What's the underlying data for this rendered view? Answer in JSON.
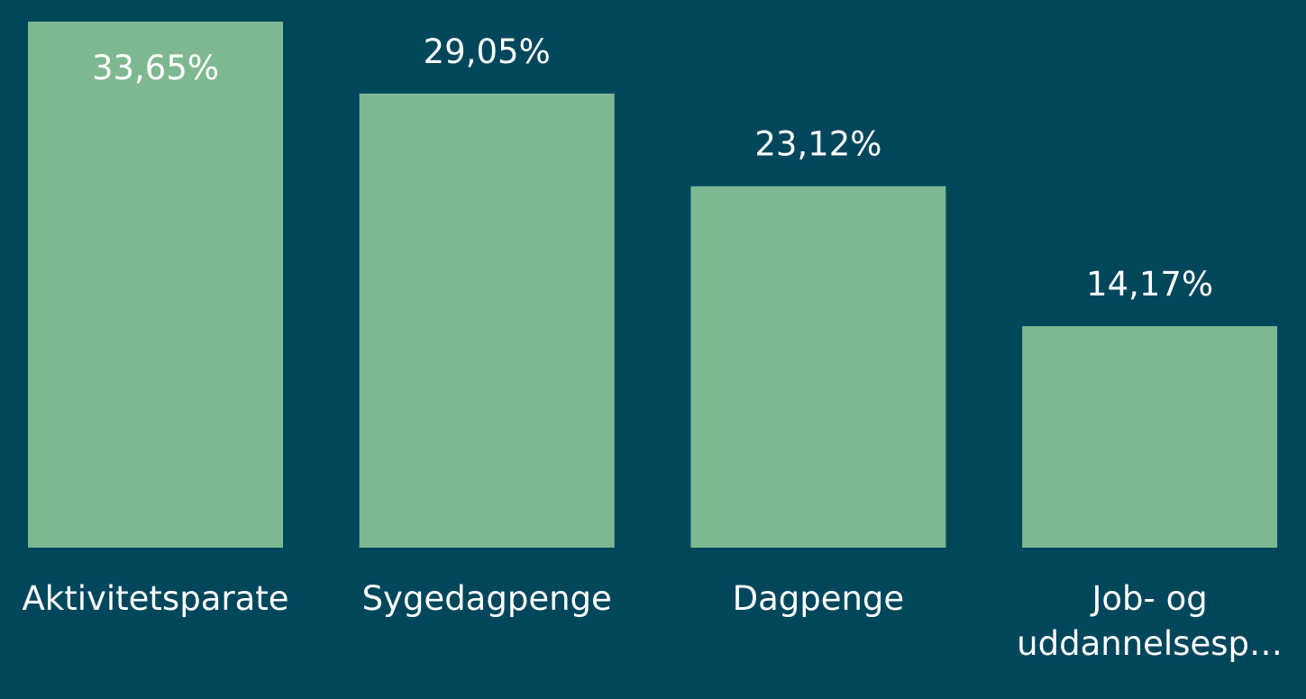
{
  "chart_data": {
    "type": "bar",
    "categories": [
      "Aktivitetsparate",
      "Sygedagpenge",
      "Dagpenge",
      "Job- og uddannelsesp…"
    ],
    "values": [
      33.65,
      29.05,
      23.12,
      14.17
    ],
    "value_labels": [
      "33,65%",
      "29,05%",
      "23,12%",
      "14,17%"
    ],
    "color": "#7db891"
  }
}
